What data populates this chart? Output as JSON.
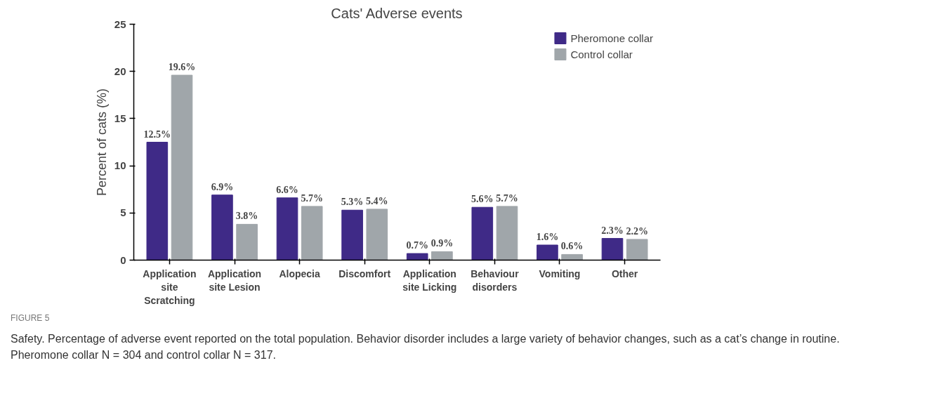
{
  "chart_data": {
    "type": "bar",
    "title": "Cats' Adverse events",
    "ylabel": "Percent of cats (%)",
    "categories": [
      "Application site Scratching",
      "Application site Lesion",
      "Alopecia",
      "Discomfort",
      "Application site Licking",
      "Behaviour disorders",
      "Vomiting",
      "Other"
    ],
    "series": [
      {
        "name": "Pheromone collar",
        "color": "#3f2a87",
        "values": [
          12.5,
          6.9,
          6.6,
          5.3,
          0.7,
          5.6,
          1.6,
          2.3
        ],
        "value_labels": [
          "12.5%",
          "6.9%",
          "6.6%",
          "5.3%",
          "0.7%",
          "5.6%",
          "1.6%",
          "2.3%"
        ]
      },
      {
        "name": "Control collar",
        "color": "#a0a6aa",
        "values": [
          19.6,
          3.8,
          5.7,
          5.4,
          0.9,
          5.7,
          0.6,
          2.2
        ],
        "value_labels": [
          "19.6%",
          "3.8%",
          "5.7%",
          "5.4%",
          "0.9%",
          "5.7%",
          "0.6%",
          "2.2%"
        ]
      }
    ],
    "ylim": [
      0,
      25
    ],
    "yticks": [
      0,
      5,
      10,
      15,
      20,
      25
    ],
    "grid": false,
    "legend": "top right",
    "annotations": [
      "FIGURE 5",
      "Safety. Percentage of adverse event reported on the total population. Behavior disorder includes a large variety of behavior changes, such as a cat’s change in routine. Pheromone collar N = 304 and control collar N = 317."
    ]
  }
}
